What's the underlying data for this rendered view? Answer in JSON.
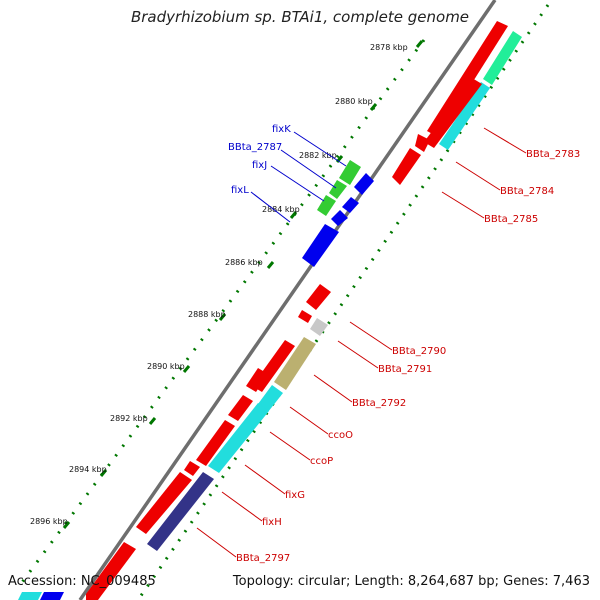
{
  "title": "Bradyrhizobium sp. BTAi1, complete genome",
  "footer": {
    "accession": "Accession: NC_009485",
    "summary": "Topology: circular; Length: 8,264,687 bp; Genes: 7,463"
  },
  "kbp_labels": [
    "2878 kbp",
    "2880 kbp",
    "2882 kbp",
    "2884 kbp",
    "2886 kbp",
    "2888 kbp",
    "2890 kbp",
    "2892 kbp",
    "2894 kbp",
    "2896 kbp"
  ],
  "gene_labels_left": [
    "fixK",
    "BBta_2787",
    "fixJ",
    "fixL"
  ],
  "gene_labels_right": [
    "BBta_2783",
    "BBta_2784",
    "BBta_2785",
    "BBta_2790",
    "BBta_2791",
    "BBta_2792",
    "ccoO",
    "ccoP",
    "fixG",
    "fixH",
    "BBta_2797"
  ],
  "colors": {
    "backbone": "#6e6e6e",
    "red": "#ee0000",
    "cyan": "#22dddd",
    "spring_green": "#22ee99",
    "green": "#33cc33",
    "blue": "#0000ee",
    "olive": "#bbb070",
    "gray": "#c8c8c8",
    "slate": "#333388",
    "label_blue": "#0000cc",
    "label_red": "#cc0000",
    "dots": "#007700"
  }
}
